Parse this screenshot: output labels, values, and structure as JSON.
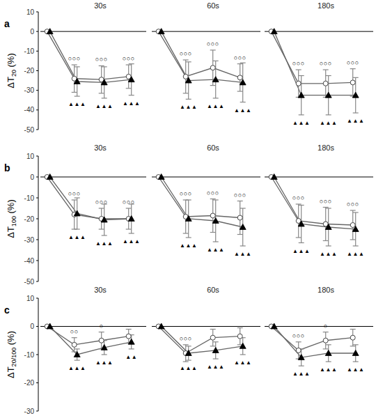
{
  "chart_data": [
    {
      "type": "line",
      "title": "30s",
      "label": "a",
      "ylabel": "ΔT20 (%)",
      "categories": [
        null,
        null,
        null,
        null
      ],
      "ylim": [
        -50,
        10
      ],
      "yticks": [
        10,
        0,
        -10,
        -20,
        -30,
        -40,
        -50
      ],
      "reference_line": 0,
      "series": [
        {
          "marker": "circle",
          "color": "#ffffff",
          "values": [
            0,
            -24,
            -24.5,
            -23
          ],
          "errors": [
            null,
            7,
            7,
            6
          ],
          "significance": [
            null,
            "○○○",
            "○○○",
            "○○○"
          ]
        },
        {
          "marker": "triangle",
          "color": "#000000",
          "values": [
            0,
            -25.5,
            -26,
            -24.5
          ],
          "errors": [
            null,
            7.5,
            8,
            8
          ],
          "significance": [
            null,
            "▲▲▲",
            "▲▲▲",
            "▲▲▲"
          ]
        }
      ]
    },
    {
      "type": "line",
      "title": "60s",
      "categories": [
        null,
        null,
        null,
        null
      ],
      "ylim": [
        -50,
        10
      ],
      "tick_labels": false,
      "reference_line": 0,
      "series": [
        {
          "marker": "circle",
          "color": "#ffffff",
          "values": [
            0,
            -23,
            -18.5,
            -23.5
          ],
          "errors": [
            null,
            8.5,
            9,
            7
          ],
          "significance": [
            null,
            "○○○",
            "○○○",
            "○○○"
          ]
        },
        {
          "marker": "triangle",
          "color": "#000000",
          "values": [
            0,
            -25,
            -24.5,
            -26
          ],
          "errors": [
            null,
            9.5,
            9.5,
            10
          ],
          "significance": [
            null,
            "▲▲▲",
            "▲▲▲",
            "▲▲▲"
          ]
        }
      ]
    },
    {
      "type": "line",
      "title": "180s",
      "categories": [
        null,
        null,
        null,
        null
      ],
      "ylim": [
        -50,
        10
      ],
      "tick_labels": false,
      "reference_line": 0,
      "series": [
        {
          "marker": "circle",
          "color": "#ffffff",
          "values": [
            0,
            -26.5,
            -26.5,
            -26
          ],
          "errors": [
            null,
            7,
            7,
            7
          ],
          "significance": [
            null,
            "○○○",
            "○○○",
            "○○○"
          ]
        },
        {
          "marker": "triangle",
          "color": "#000000",
          "values": [
            0,
            -32.5,
            -32.5,
            -32.5
          ],
          "errors": [
            null,
            10,
            10,
            9
          ],
          "significance": [
            null,
            "▲▲▲",
            "▲▲▲",
            "▲▲▲"
          ]
        }
      ]
    },
    {
      "type": "line",
      "title": "30s",
      "label": "b",
      "ylabel": "ΔT100 (%)",
      "categories": [
        null,
        null,
        null,
        null
      ],
      "ylim": [
        -50,
        10
      ],
      "yticks": [
        10,
        0,
        -10,
        -20,
        -30,
        -40,
        -50
      ],
      "reference_line": 0,
      "series": [
        {
          "marker": "circle",
          "color": "#ffffff",
          "values": [
            0,
            -18,
            -20,
            -20
          ],
          "errors": [
            null,
            7,
            5,
            5
          ],
          "significance": [
            null,
            "○○○",
            "○○○",
            "○○○"
          ]
        },
        {
          "marker": "triangle",
          "color": "#000000",
          "values": [
            0,
            -17.5,
            -20.5,
            -20
          ],
          "errors": [
            null,
            7.5,
            7.5,
            7
          ],
          "significance": [
            null,
            "▲▲▲",
            "▲▲▲",
            "▲▲▲"
          ]
        }
      ]
    },
    {
      "type": "line",
      "title": "60s",
      "categories": [
        null,
        null,
        null,
        null
      ],
      "ylim": [
        -50,
        10
      ],
      "tick_labels": false,
      "reference_line": 0,
      "series": [
        {
          "marker": "circle",
          "color": "#ffffff",
          "values": [
            0,
            -19,
            -18.5,
            -19.5
          ],
          "errors": [
            null,
            8,
            8,
            8
          ],
          "significance": [
            null,
            "○○○",
            "○○○",
            "○○○"
          ]
        },
        {
          "marker": "triangle",
          "color": "#000000",
          "values": [
            0,
            -20,
            -21,
            -24
          ],
          "errors": [
            null,
            9,
            10,
            9
          ],
          "significance": [
            null,
            "▲▲▲",
            "▲▲▲",
            "▲▲▲"
          ]
        }
      ]
    },
    {
      "type": "line",
      "title": "180s",
      "categories": [
        null,
        null,
        null,
        null
      ],
      "ylim": [
        -50,
        10
      ],
      "tick_labels": false,
      "reference_line": 0,
      "series": [
        {
          "marker": "circle",
          "color": "#ffffff",
          "values": [
            0,
            -21,
            -22.5,
            -23
          ],
          "errors": [
            null,
            8,
            8,
            7
          ],
          "significance": [
            null,
            "○○○",
            "○○○",
            "○○○"
          ]
        },
        {
          "marker": "triangle",
          "color": "#000000",
          "values": [
            0,
            -22.5,
            -24,
            -25
          ],
          "errors": [
            null,
            9,
            9,
            8
          ],
          "significance": [
            null,
            "▲▲▲",
            "▲▲▲",
            "▲▲▲"
          ]
        }
      ]
    },
    {
      "type": "line",
      "title": "30s",
      "label": "c",
      "ylabel": "ΔT20/100 (%)",
      "categories": [
        null,
        null,
        null,
        null
      ],
      "ylim": [
        -30,
        10
      ],
      "yticks": [
        10,
        0,
        -10,
        -20,
        -30
      ],
      "reference_line": 0,
      "series": [
        {
          "marker": "circle",
          "color": "#ffffff",
          "values": [
            0,
            -6.5,
            -5,
            -3.5
          ],
          "errors": [
            null,
            2.5,
            3,
            2.5
          ],
          "significance": [
            null,
            "○○",
            "○",
            null
          ]
        },
        {
          "marker": "triangle",
          "color": "#000000",
          "values": [
            0,
            -10,
            -7.5,
            -5.5
          ],
          "errors": [
            null,
            2,
            2.5,
            2.5
          ],
          "significance": [
            null,
            "▲▲▲",
            "▲▲▲",
            "▲▲"
          ]
        }
      ]
    },
    {
      "type": "line",
      "title": "60s",
      "categories": [
        null,
        null,
        null,
        null
      ],
      "ylim": [
        -30,
        10
      ],
      "tick_labels": false,
      "reference_line": 0,
      "series": [
        {
          "marker": "circle",
          "color": "#ffffff",
          "values": [
            0,
            -9.5,
            -4,
            -3.5
          ],
          "errors": [
            null,
            3,
            3,
            3
          ],
          "significance": [
            null,
            "○○○",
            null,
            null
          ]
        },
        {
          "marker": "triangle",
          "color": "#000000",
          "values": [
            0,
            -9.5,
            -8.5,
            -7
          ],
          "errors": [
            null,
            2.5,
            3,
            3
          ],
          "significance": [
            null,
            "▲▲▲",
            "▲▲▲",
            "▲▲▲"
          ]
        }
      ]
    },
    {
      "type": "line",
      "title": "180s",
      "categories": [
        null,
        null,
        null,
        null
      ],
      "ylim": [
        -30,
        10
      ],
      "tick_labels": false,
      "reference_line": 0,
      "series": [
        {
          "marker": "circle",
          "color": "#ffffff",
          "values": [
            0,
            -8.5,
            -5,
            -4
          ],
          "errors": [
            null,
            3,
            3,
            3
          ],
          "significance": [
            null,
            "○○○",
            "○",
            null
          ]
        },
        {
          "marker": "triangle",
          "color": "#000000",
          "values": [
            0,
            -11,
            -9.5,
            -9.5
          ],
          "errors": [
            null,
            3,
            3,
            3
          ],
          "significance": [
            null,
            "▲▲▲",
            "▲▲▲",
            "▲▲▲"
          ]
        }
      ]
    }
  ]
}
